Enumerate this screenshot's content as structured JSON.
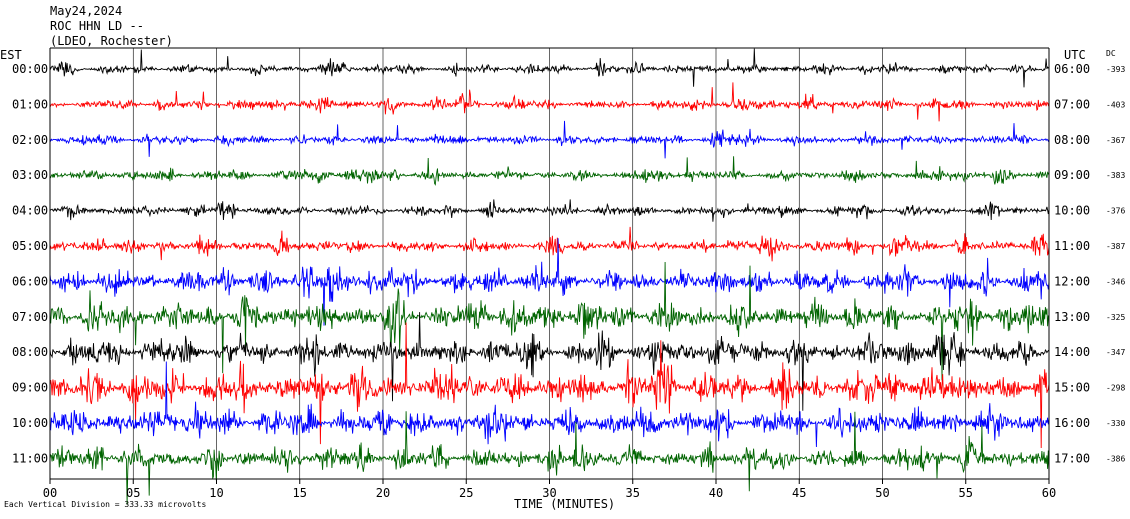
{
  "header": {
    "date": "May24,2024",
    "station": "ROC HHN LD --",
    "network": "(LDEO, Rochester)"
  },
  "labels": {
    "left_zone": "EST",
    "right_zone": "UTC",
    "dc_header": "DC",
    "xlabel": "TIME (MINUTES)",
    "footnote": "Each Vertical Division = 333.33 microvolts"
  },
  "colors": {
    "trace_cycle": [
      "#000000",
      "#ff0000",
      "#0000ff",
      "#006400"
    ],
    "grid": "#000000",
    "background": "#ffffff"
  },
  "chart_data": {
    "type": "line",
    "title": "ROC HHN LD --",
    "xlabel": "TIME (MINUTES)",
    "xlim": [
      0,
      60
    ],
    "x_ticks": [
      "00",
      "05",
      "10",
      "15",
      "20",
      "25",
      "30",
      "35",
      "40",
      "45",
      "50",
      "55",
      "60"
    ],
    "grid": "vertical every 5 minutes",
    "rows": [
      {
        "est": "00:00",
        "utc": "06:00",
        "dc": "-393",
        "amplitude": 0.28
      },
      {
        "est": "01:00",
        "utc": "07:00",
        "dc": "-403",
        "amplitude": 0.3
      },
      {
        "est": "02:00",
        "utc": "08:00",
        "dc": "-367",
        "amplitude": 0.3
      },
      {
        "est": "03:00",
        "utc": "09:00",
        "dc": "-383",
        "amplitude": 0.33
      },
      {
        "est": "04:00",
        "utc": "10:00",
        "dc": "-376",
        "amplitude": 0.3
      },
      {
        "est": "05:00",
        "utc": "11:00",
        "dc": "-387",
        "amplitude": 0.38
      },
      {
        "est": "06:00",
        "utc": "12:00",
        "dc": "-346",
        "amplitude": 0.7
      },
      {
        "est": "07:00",
        "utc": "13:00",
        "dc": "-325",
        "amplitude": 0.85
      },
      {
        "est": "08:00",
        "utc": "14:00",
        "dc": "-347",
        "amplitude": 0.8
      },
      {
        "est": "09:00",
        "utc": "15:00",
        "dc": "-298",
        "amplitude": 0.95
      },
      {
        "est": "10:00",
        "utc": "16:00",
        "dc": "-330",
        "amplitude": 0.85
      },
      {
        "est": "11:00",
        "utc": "17:00",
        "dc": "-386",
        "amplitude": 0.65
      }
    ]
  }
}
